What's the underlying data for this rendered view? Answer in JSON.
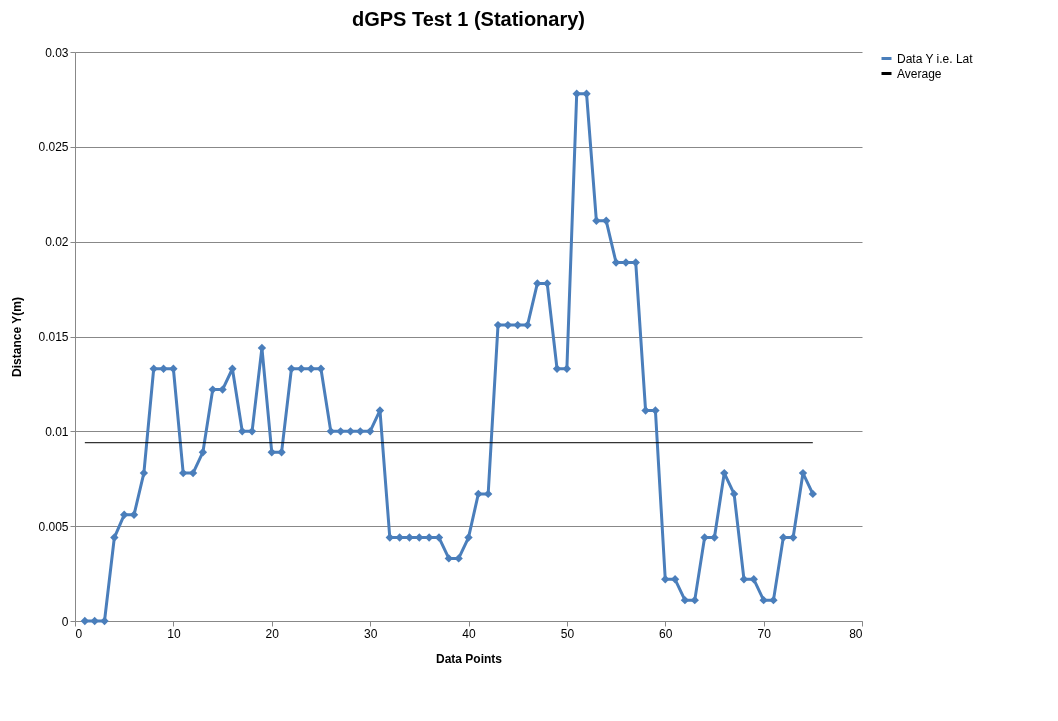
{
  "chart_data": {
    "type": "line",
    "title": "dGPS Test 1 (Stationary)",
    "xlabel": "Data Points",
    "ylabel": "Distance Y(m)",
    "x": [
      1,
      2,
      3,
      4,
      5,
      6,
      7,
      8,
      9,
      10,
      11,
      12,
      13,
      14,
      15,
      16,
      17,
      18,
      19,
      20,
      21,
      22,
      23,
      24,
      25,
      26,
      27,
      28,
      29,
      30,
      31,
      32,
      33,
      34,
      35,
      36,
      37,
      38,
      39,
      40,
      41,
      42,
      43,
      44,
      45,
      46,
      47,
      48,
      49,
      50,
      51,
      52,
      53,
      54,
      55,
      56,
      57,
      58,
      59,
      60,
      61,
      62,
      63,
      64,
      65,
      66,
      67,
      68,
      69,
      70,
      71,
      72,
      73,
      74,
      75
    ],
    "series": [
      {
        "name": "Data Y i.e. Lat",
        "color": "#4a7ebb",
        "marker": "diamond",
        "values": [
          0,
          0,
          0,
          0.0044,
          0.0056,
          0.0056,
          0.0078,
          0.0133,
          0.0133,
          0.0133,
          0.0078,
          0.0078,
          0.0089,
          0.0122,
          0.0122,
          0.0133,
          0.01,
          0.01,
          0.0144,
          0.0089,
          0.0089,
          0.0133,
          0.0133,
          0.0133,
          0.0133,
          0.01,
          0.01,
          0.01,
          0.01,
          0.01,
          0.0111,
          0.0044,
          0.0044,
          0.0044,
          0.0044,
          0.0044,
          0.0044,
          0.0033,
          0.0033,
          0.0044,
          0.0067,
          0.0067,
          0.0156,
          0.0156,
          0.0156,
          0.0156,
          0.0178,
          0.0178,
          0.0133,
          0.0133,
          0.0278,
          0.0278,
          0.0211,
          0.0211,
          0.0189,
          0.0189,
          0.0189,
          0.0111,
          0.0111,
          0.0022,
          0.0022,
          0.0011,
          0.0011,
          0.0044,
          0.0044,
          0.0078,
          0.0067,
          0.0022,
          0.0022,
          0.0011,
          0.0011,
          0.0044,
          0.0044,
          0.0078,
          0.0067
        ]
      },
      {
        "name": "Average",
        "color": "#000000",
        "marker": "none",
        "x": [
          1,
          75
        ],
        "values": [
          0.0094,
          0.0094
        ]
      }
    ],
    "xlim": [
      0,
      80
    ],
    "xticks": [
      0,
      10,
      20,
      30,
      40,
      50,
      60,
      70,
      80
    ],
    "ylim": [
      0,
      0.03
    ],
    "yticks": [
      0,
      0.005,
      0.01,
      0.015,
      0.02,
      0.025,
      0.03
    ],
    "grid": "y",
    "legend": "right",
    "line_style": "solid"
  }
}
